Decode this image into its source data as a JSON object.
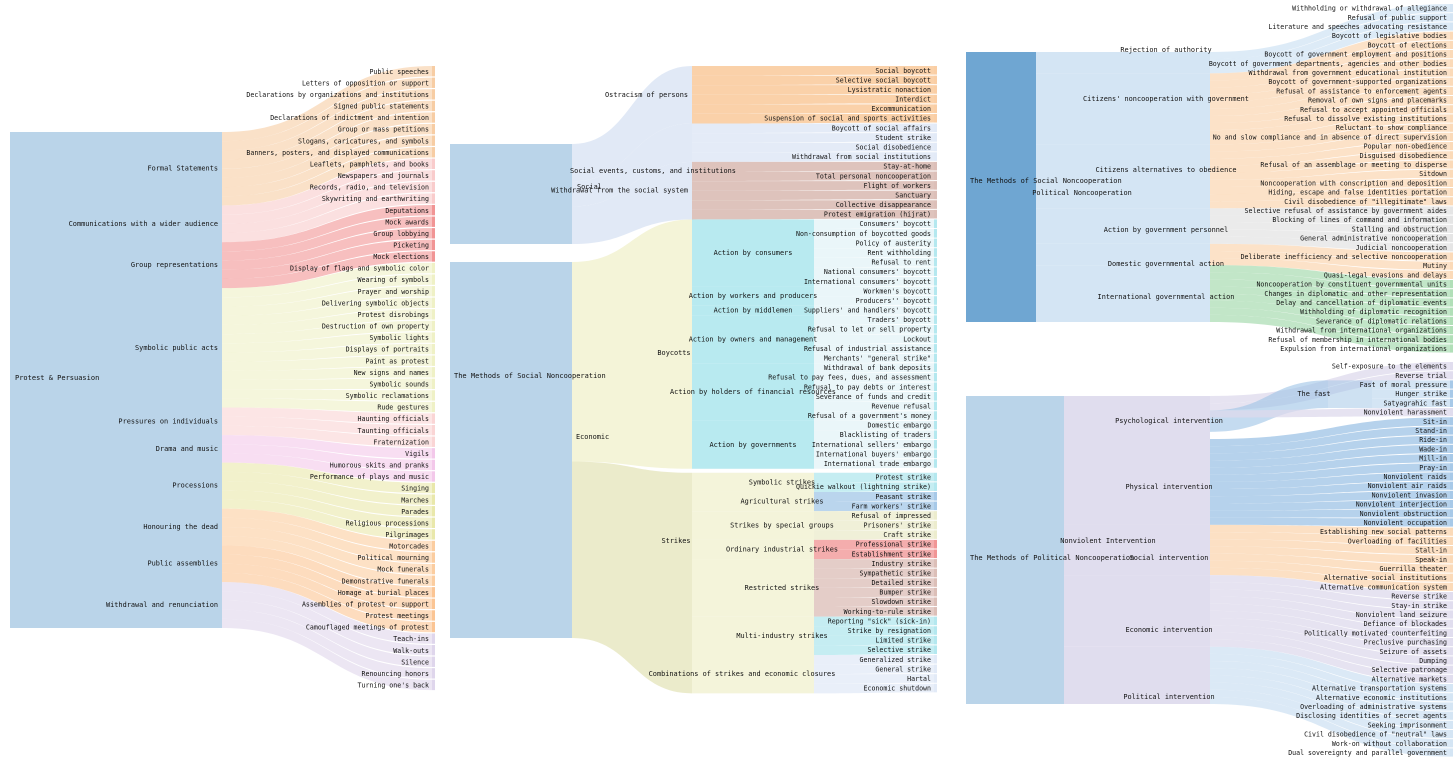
{
  "colors": {
    "formal": "#f6c89a",
    "comm": "#f8c6c6",
    "group": "#f08a8a",
    "symbolic": "#edefc0",
    "pressure": "#f9d0d0",
    "drama": "#f2c2e8",
    "proc": "#e7e6a2",
    "honour": "#fbc896",
    "assembly": "#fbbf88",
    "withdraw": "#dcd2ea",
    "social": "#dfe8f6",
    "ostracism": "#f9c99a",
    "withdrawal_social": "#d8b8b0",
    "economic": "#f3f3d6",
    "boycott": "#ace6ed",
    "strike": "#eaeac8",
    "root": "#b6d2e8",
    "authority": "#cfe2f3",
    "orange": "#fbd6b0",
    "green": "#a8dcb0",
    "grey": "#e2e2e2",
    "lilac": "#ddd9ec",
    "blue": "#9dc3e6"
  },
  "panel1": {
    "root": "Protest & Persuasion",
    "groups": [
      {
        "label": "Formal Statements",
        "color": "formal",
        "items": [
          "Public speeches",
          "Letters of opposition or support",
          "Declarations by organizations and institutions",
          "Signed public statements",
          "Declarations of indictment and intention",
          "Group or mass petitions",
          "Slogans, caricatures, and symbols",
          "Banners, posters, and displayed communications"
        ]
      },
      {
        "label": "Communications with a wider audience",
        "color": "comm",
        "items": [
          "Leaflets, pamphlets, and books",
          "Newspapers and journals",
          "Records, radio, and television",
          "Skywriting and earthwriting"
        ]
      },
      {
        "label": "Group representations",
        "color": "group",
        "items": [
          "Deputations",
          "Mock awards",
          "Group lobbying",
          "Picketing",
          "Mock elections"
        ]
      },
      {
        "label": "Symbolic public acts",
        "color": "symbolic",
        "items": [
          "Display of flags and symbolic color",
          "Wearing of symbols",
          "Prayer and worship",
          "Delivering symbolic objects",
          "Protest disrobings",
          "Destruction of own property",
          "Symbolic lights",
          "Displays of portraits",
          "Paint as protest",
          "New signs and names",
          "Symbolic sounds",
          "Symbolic reclamations",
          "Rude gestures"
        ]
      },
      {
        "label": "Pressures on individuals",
        "color": "pressure",
        "items": [
          "Haunting officials",
          "Taunting officials",
          "Fraternization"
        ]
      },
      {
        "label": "Drama and music",
        "color": "drama",
        "items": [
          "Vigils",
          "Humorous skits and pranks",
          "Performance of plays and music"
        ]
      },
      {
        "label": "Processions",
        "color": "proc",
        "items": [
          "Singing",
          "Marches",
          "Parades",
          "Religious processions",
          "Pilgrimages"
        ]
      },
      {
        "label": "Honouring the dead",
        "color": "honour",
        "items": [
          "Motorcades",
          "Political mourning",
          "Mock funerals",
          "Demonstrative funerals"
        ]
      },
      {
        "label": "Public assemblies",
        "color": "assembly",
        "items": [
          "Homage at burial places",
          "Assemblies of protest or support",
          "Protest meetings",
          "Camouflaged meetings of protest"
        ]
      },
      {
        "label": "Withdrawal and renunciation",
        "color": "withdraw",
        "items": [
          "Teach-ins",
          "Walk-outs",
          "Silence",
          "Renouncing honors",
          "Turning one's back"
        ]
      }
    ]
  },
  "panel2": {
    "root": "The Methods of Social Noncooperation",
    "social_label": "Social",
    "economic_label": "Economic",
    "social_groups": [
      {
        "label": "Ostracism of persons",
        "color": "ostracism",
        "items": [
          "Social boycott",
          "Selective social boycott",
          "Lysistratic nonaction",
          "Interdict",
          "Excommunication",
          "Suspension of social and sports activities"
        ]
      },
      {
        "label": "Social events, customs, and institutions",
        "color": "social",
        "items": [
          "Boycott of social affairs",
          "Student strike",
          "Social disobedience",
          "Withdrawal from social institutions"
        ]
      },
      {
        "label": "Withdrawal from the social system",
        "color": "withdrawal_social",
        "items": [
          "Stay-at-home",
          "Total personal noncooperation",
          "Flight of workers",
          "Sanctuary",
          "Collective disappearance",
          "Protest emigration (hijrat)"
        ]
      }
    ],
    "boycotts_label": "Boycotts",
    "strikes_label": "Strikes",
    "boycott_groups": [
      {
        "label": "Action by consumers",
        "items": [
          "Consumers' boycott",
          "Non-consumption of boycotted goods",
          "Policy of austerity",
          "Rent withholding",
          "Refusal to rent",
          "National consumers' boycott",
          "International consumers' boycott"
        ]
      },
      {
        "label": "Action by workers and producers",
        "items": [
          "Workmen's boycott",
          "Producers'' boycott"
        ]
      },
      {
        "label": "Action by middlemen",
        "items": [
          "Suppliers' and handlers' boycott"
        ]
      },
      {
        "label": "Action by owners and management",
        "items": [
          "Traders' boycott",
          "Refusal to let or sell property",
          "Lockout",
          "Refusal of industrial assistance",
          "Merchants' \"general strike\""
        ]
      },
      {
        "label": "Action by holders of financial resources",
        "items": [
          "Withdrawal of bank deposits",
          "Refusal to pay fees, dues, and assessment",
          "Refusal to pay debts or interest",
          "Severance of funds and credit",
          "Revenue refusal",
          "Refusal of a government's money"
        ]
      },
      {
        "label": "Action by governments",
        "items": [
          "Domestic embargo",
          "Blacklisting of traders",
          "International sellers' embargo",
          "International buyers' embargo",
          "International trade embargo"
        ]
      }
    ],
    "strike_groups": [
      {
        "label": "Symbolic strikes",
        "color": "boycott",
        "items": [
          "Protest strike",
          "Quickie walkout (lightning strike)"
        ]
      },
      {
        "label": "Agricultural strikes",
        "color": "blue",
        "items": [
          "Peasant strike",
          "Farm workers' strike"
        ]
      },
      {
        "label": "Strikes by special groups",
        "color": "strike",
        "items": [
          "Refusal of impressed",
          "Prisoners' strike",
          "Craft strike"
        ]
      },
      {
        "label": "Ordinary industrial strikes",
        "color": "group",
        "items": [
          "Professional strike",
          "Establishment strike"
        ]
      },
      {
        "label": "Restricted strikes",
        "color": "withdrawal_social",
        "items": [
          "Industry strike",
          "Sympathetic strike",
          "Detailed strike",
          "Bumper strike",
          "Slowdown strike",
          "Working-to-rule strike"
        ]
      },
      {
        "label": "Multi-industry strikes",
        "color": "boycott",
        "items": [
          "Reporting \"sick\" (sick-in)",
          "Strike by resignation",
          "Limited strike",
          "Selective strike"
        ]
      },
      {
        "label": "Combinations of strikes and economic closures",
        "color": "social",
        "items": [
          "Generalized strike",
          "General strike",
          "Hartal",
          "Economic shutdown"
        ]
      }
    ]
  },
  "panel3": {
    "root": "The Methods of Social Noncooperation",
    "political_label": "Political Noncooperation",
    "groups": [
      {
        "label": "Rejection of authority",
        "color": "authority",
        "items": [
          "Withholding or withdrawal of allegiance",
          "Refusal of public support",
          "Literature and speeches advocating resistance"
        ]
      },
      {
        "label": "Citizens' noncooperation with government",
        "color": "orange",
        "items": [
          "Boycott of legislative bodies",
          "Boycott of elections",
          "Boycott of government employment and positions",
          "Boycott of government departments, agencies and other bodies",
          "Withdrawal from government educational institution",
          "Boycott of government-supported organizations",
          "Refusal of assistance to enforcement agents",
          "Removal of own signs and placemarks",
          "Refusal to accept appointed officials",
          "Refusal to dissolve existing institutions"
        ]
      },
      {
        "label": "Citizens alternatives to obedience",
        "color": "orange",
        "items": [
          "Reluctant to show compliance",
          "No and slow compliance and in absence of direct supervision",
          "Popular non-obedience",
          "Disguised disobedience",
          "Refusal of an assemblage or meeting to disperse",
          "Sitdown",
          "Noncooperation with conscription and deposition",
          "Hiding, escape and false identities portation",
          "Civil disobedience of \"illegitimate\" laws"
        ]
      },
      {
        "label": "Action by government personnel",
        "color": "grey",
        "items": [
          "Selective refusal of assistance by government aides",
          "Blocking of lines of command and information",
          "Stalling and obstruction",
          "General administrative noncooperation",
          "Judicial noncooperation"
        ]
      },
      {
        "label": "Domestic governmental action",
        "color": "orange",
        "items": [
          "Deliberate inefficiency and selective noncooperation",
          "Mutiny",
          "Quasi-legal evasions and delays"
        ]
      },
      {
        "label": "International governmental action",
        "color": "green",
        "items": [
          "Noncooperation by constituent governmental units",
          "Changes in diplomatic and other representation",
          "Delay and cancellation of diplomatic events",
          "Withholding of diplomatic recognition",
          "Severance of diplomatic relations",
          "Withdrawal from international organizations",
          "Refusal of membership in international bodies",
          "Expulsion from international organizations"
        ]
      }
    ]
  },
  "panel4": {
    "root": "The Methods of Political Noncooperation",
    "mid_label": "Nonviolent Intervention",
    "fast_label": "The fast",
    "groups": [
      {
        "label": "Psychological intervention",
        "color": "lilac",
        "items": [
          "Self-exposure to the elements",
          "Reverse trial",
          "Nonviolent harassment"
        ]
      },
      {
        "label": "Physical intervention",
        "color": "blue",
        "items": [
          "Sit-in",
          "Stand-in",
          "Ride-in",
          "Wade-in",
          "Mill-in",
          "Pray-in",
          "Nonviolent raids",
          "Nonviolent air raids",
          "Nonviolent invasion",
          "Nonviolent interjection",
          "Nonviolent obstruction",
          "Nonviolent occupation"
        ]
      },
      {
        "label": "Social intervention",
        "color": "orange",
        "items": [
          "Establishing new social patterns",
          "Overloading of facilities",
          "Stall-in",
          "Speak-in",
          "Guerrilla theater",
          "Alternative social institutions",
          "Alternative communication system"
        ]
      },
      {
        "label": "Economic intervention",
        "color": "lilac",
        "items": [
          "Reverse strike",
          "Stay-in strike",
          "Nonviolent land seizure",
          "Defiance of blockades",
          "Politically motivated counterfeiting",
          "Preclusive purchasing",
          "Seizure of assets",
          "Dumping",
          "Selective patronage",
          "Alternative markets"
        ]
      },
      {
        "label": "Political intervention",
        "color": "authority",
        "items": [
          "Alternative transportation systems",
          "Alternative economic institutions",
          "Overloading of administrative systems",
          "Disclosing identities of secret agents",
          "Seeking imprisonment",
          "Civil disobedience of \"neutral\" laws",
          "Work-on without collaboration",
          "Dual sovereignty and parallel government"
        ]
      }
    ],
    "fast_items": [
      "Fast of moral pressure",
      "Hunger strike",
      "Satyagrahic fast"
    ]
  }
}
